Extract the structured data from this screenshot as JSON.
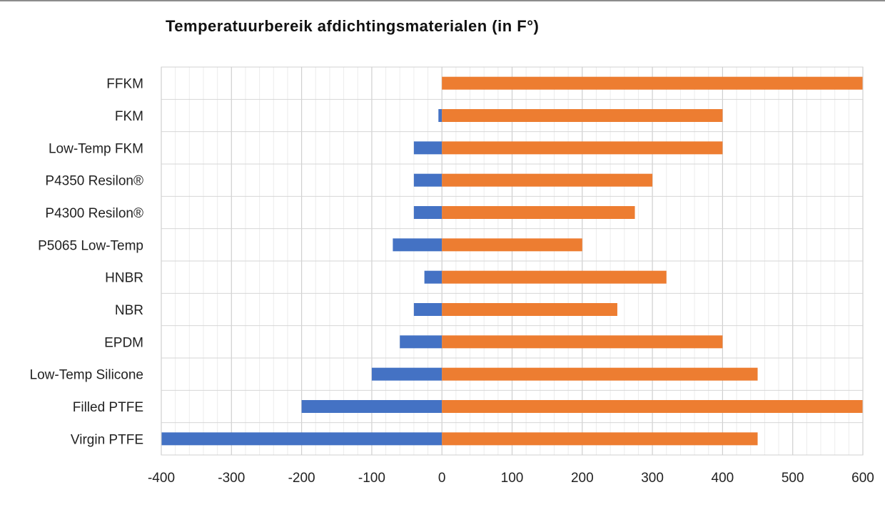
{
  "chart_data": {
    "type": "bar",
    "orientation": "horizontal",
    "stacked": true,
    "title": "Temperatuurbereik afdichtingsmaterialen (in F°)",
    "xlabel": "",
    "ylabel": "",
    "xlim": [
      -400,
      600
    ],
    "x_ticks": [
      "-400",
      "-300",
      "-200",
      "-100",
      "0",
      "100",
      "200",
      "300",
      "400",
      "500",
      "600"
    ],
    "grid": true,
    "legend": "none",
    "categories": [
      "FFKM",
      "FKM",
      "Low-Temp FKM",
      "P4350 Resilon®",
      "P4300 Resilon®",
      "P5065 Low-Temp",
      "HNBR",
      "NBR",
      "EPDM",
      "Low-Temp Silicone",
      "Filled PTFE",
      "Virgin PTFE"
    ],
    "series": [
      {
        "color": "#4472c4",
        "values": [
          0,
          -5,
          -40,
          -40,
          -40,
          -70,
          -25,
          -40,
          -60,
          -100,
          -200,
          -400
        ]
      },
      {
        "color": "#ed7d31",
        "values": [
          600,
          400,
          400,
          300,
          275,
          200,
          320,
          250,
          400,
          450,
          600,
          450
        ]
      }
    ]
  }
}
